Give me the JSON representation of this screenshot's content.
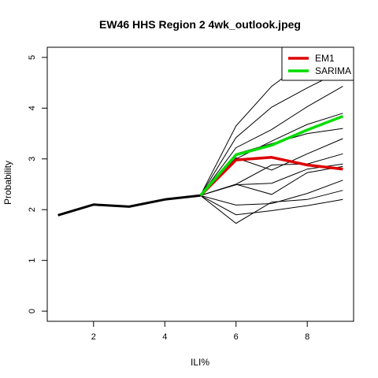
{
  "chart_data": {
    "type": "line",
    "title": "EW46 HHS Region 2 4wk_outlook.jpeg",
    "xlabel": "ILI%",
    "ylabel": "Probability",
    "xlim": [
      0.7,
      9.3
    ],
    "ylim": [
      -0.2,
      5.2
    ],
    "xticks": [
      2,
      4,
      6,
      8
    ],
    "yticks": [
      0,
      1,
      2,
      3,
      4,
      5
    ],
    "grid": false,
    "legend": {
      "position": "top-right",
      "entries": [
        {
          "name": "EM1",
          "color": "#dd0000"
        },
        {
          "name": "SARIMA",
          "color": "#00dd00"
        }
      ]
    },
    "history": {
      "x": [
        1,
        2,
        3,
        4,
        5
      ],
      "y": [
        1.89,
        2.1,
        2.06,
        2.2,
        2.28
      ],
      "color": "#000000"
    },
    "ensemble": [
      {
        "x": [
          5,
          6,
          7,
          8,
          9
        ],
        "y": [
          2.28,
          3.65,
          4.43,
          4.95,
          5.2
        ]
      },
      {
        "x": [
          5,
          6,
          7,
          8,
          9
        ],
        "y": [
          2.28,
          3.42,
          4.02,
          4.4,
          4.75
        ]
      },
      {
        "x": [
          5,
          6,
          7,
          8,
          9
        ],
        "y": [
          2.28,
          3.22,
          3.58,
          4.03,
          4.43
        ]
      },
      {
        "x": [
          5,
          6,
          7,
          8,
          9
        ],
        "y": [
          2.28,
          3.0,
          3.35,
          3.68,
          3.9
        ]
      },
      {
        "x": [
          5,
          6,
          7,
          8,
          9
        ],
        "y": [
          2.28,
          3.1,
          3.3,
          3.5,
          3.6
        ]
      },
      {
        "x": [
          5,
          6,
          7,
          8,
          9
        ],
        "y": [
          2.28,
          3.02,
          2.78,
          3.1,
          3.4
        ]
      },
      {
        "x": [
          5,
          6,
          7,
          8,
          9
        ],
        "y": [
          2.28,
          2.5,
          2.88,
          2.9,
          3.1
        ]
      },
      {
        "x": [
          5,
          6,
          7,
          8,
          9
        ],
        "y": [
          2.28,
          2.49,
          2.52,
          2.8,
          2.9
        ]
      },
      {
        "x": [
          5,
          6,
          7,
          8,
          9
        ],
        "y": [
          2.28,
          2.5,
          2.3,
          2.73,
          2.85
        ]
      },
      {
        "x": [
          5,
          6,
          7,
          8,
          9
        ],
        "y": [
          2.28,
          2.09,
          2.12,
          2.32,
          2.58
        ]
      },
      {
        "x": [
          5,
          6,
          7,
          8,
          9
        ],
        "y": [
          2.28,
          1.73,
          2.15,
          2.2,
          2.38
        ]
      },
      {
        "x": [
          5,
          6,
          7,
          8,
          9
        ],
        "y": [
          2.28,
          1.9,
          1.98,
          2.08,
          2.2
        ]
      }
    ],
    "series": [
      {
        "name": "EM1",
        "color": "#dd0000",
        "x": [
          5,
          6,
          7,
          8,
          9
        ],
        "y": [
          2.28,
          2.98,
          3.03,
          2.88,
          2.8
        ]
      },
      {
        "name": "SARIMA",
        "color": "#00dd00",
        "x": [
          5,
          6,
          7,
          8,
          9
        ],
        "y": [
          2.28,
          3.08,
          3.27,
          3.57,
          3.84
        ]
      }
    ]
  }
}
